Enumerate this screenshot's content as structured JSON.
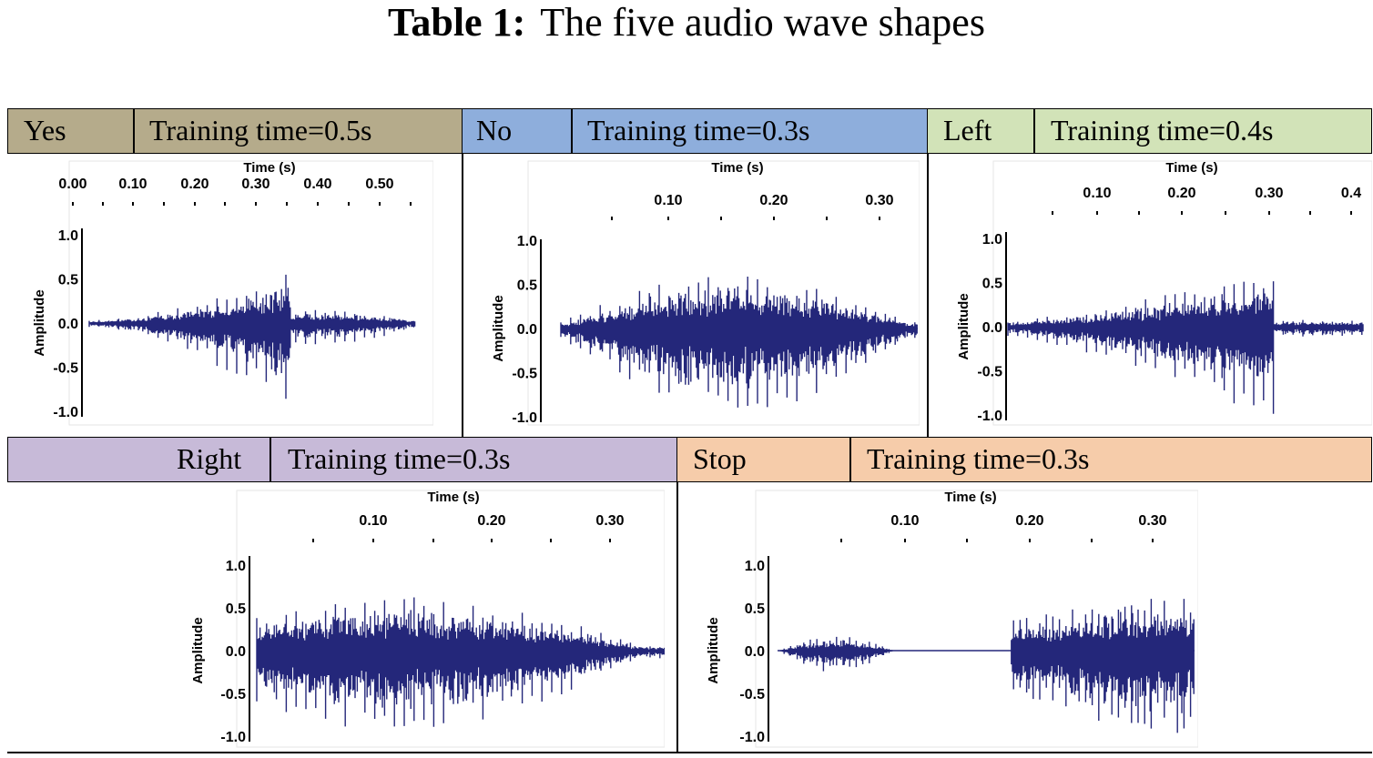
{
  "title": {
    "bold": "Table 1:",
    "rest": "The five audio wave shapes"
  },
  "colors": {
    "yes": "#b5ab8b",
    "no": "#8eaedc",
    "left": "#d2e3b8",
    "right": "#c7bad8",
    "stop": "#f6ccaa",
    "wave": "#24277a"
  },
  "cells": [
    {
      "word": "Yes",
      "training": "Training time=0.5s",
      "time_label": "Time (s)",
      "y_label": "Amplitude",
      "x_ticks": [
        "0.00",
        "0.10",
        "0.20",
        "0.30",
        "0.40",
        "0.50"
      ],
      "y_ticks": [
        "1.0",
        "0.5",
        "0.0",
        "-0.5",
        "-1.0"
      ]
    },
    {
      "word": "No",
      "training": "Training time=0.3s",
      "time_label": "Time (s)",
      "y_label": "Amplitude",
      "x_ticks": [
        "0.10",
        "0.20",
        "0.30"
      ],
      "y_ticks": [
        "1.0",
        "0.5",
        "0.0",
        "-0.5",
        "-1.0"
      ]
    },
    {
      "word": "Left",
      "training": "Training time=0.4s",
      "time_label": "Time (s)",
      "y_label": "Amplitude",
      "x_ticks": [
        "0.10",
        "0.20",
        "0.30",
        "0.4"
      ],
      "y_ticks": [
        "1.0",
        "0.5",
        "0.0",
        "-0.5",
        "-1.0"
      ]
    },
    {
      "word": "Right",
      "training": "Training time=0.3s",
      "time_label": "Time (s)",
      "y_label": "Amplitude",
      "x_ticks": [
        "0.10",
        "0.20",
        "0.30"
      ],
      "y_ticks": [
        "1.0",
        "0.5",
        "0.0",
        "-0.5",
        "-1.0"
      ]
    },
    {
      "word": "Stop",
      "training": "Training time=0.3s",
      "time_label": "Time (s)",
      "y_label": "Amplitude",
      "x_ticks": [
        "0.10",
        "0.20",
        "0.30"
      ],
      "y_ticks": [
        "1.0",
        "0.5",
        "0.0",
        "-0.5",
        "-1.0"
      ]
    }
  ]
}
